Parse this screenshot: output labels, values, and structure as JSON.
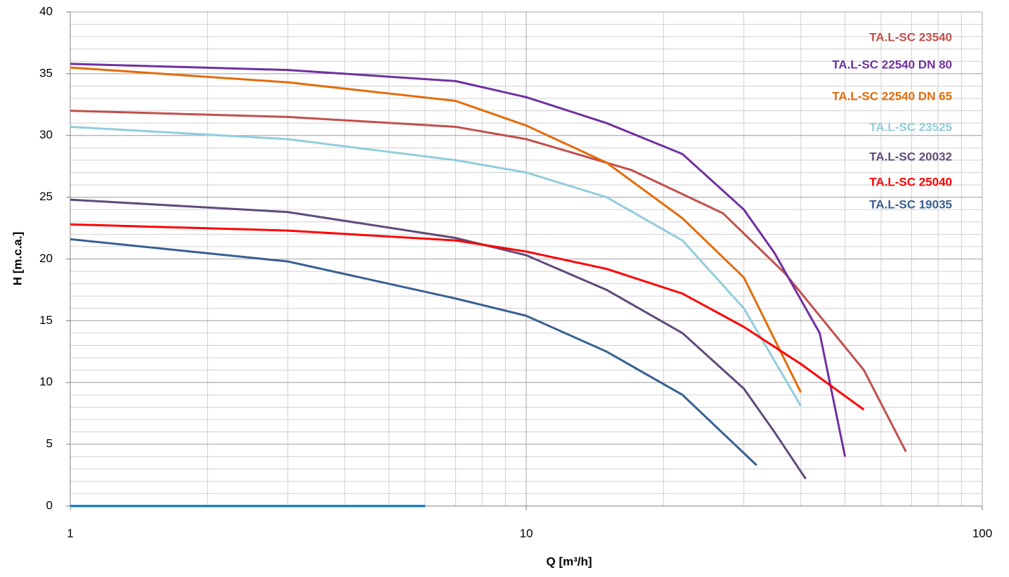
{
  "chart_data": {
    "type": "line",
    "x_label": "Q [m³/h]",
    "y_label": "H [m.c.a.]",
    "xlim": [
      1,
      100
    ],
    "xticks": [
      1,
      10,
      100
    ],
    "x_log": true,
    "ylim": [
      0,
      40
    ],
    "yticks": [
      0,
      5,
      10,
      15,
      20,
      25,
      30,
      35,
      40
    ],
    "grid": true,
    "series": [
      {
        "name": "TA.L-SC 23540",
        "color": "#c0504d",
        "x": [
          1,
          3,
          7,
          10,
          17,
          27,
          37,
          55,
          68
        ],
        "values": [
          32,
          31.5,
          30.7,
          29.7,
          27.2,
          23.7,
          18.8,
          11,
          4.4
        ]
      },
      {
        "name": "TA.L-SC 22540 DN 80",
        "color": "#7030a0",
        "x": [
          1,
          3,
          7,
          10,
          15,
          22,
          30,
          35,
          44,
          50
        ],
        "values": [
          35.8,
          35.3,
          34.4,
          33.1,
          31,
          28.5,
          24,
          20.5,
          14,
          4
        ]
      },
      {
        "name": "TA.L-SC 22540 DN 65",
        "color": "#e36c09",
        "x": [
          1,
          3,
          7,
          10,
          15,
          22,
          30,
          40
        ],
        "values": [
          35.5,
          34.3,
          32.8,
          30.8,
          27.8,
          23.3,
          18.5,
          9.2
        ]
      },
      {
        "name": "TA.L-SC 23525",
        "color": "#92cddc",
        "x": [
          1,
          3,
          7,
          10,
          15,
          22,
          30,
          40
        ],
        "values": [
          30.7,
          29.7,
          28,
          27,
          25,
          21.5,
          16,
          8.1
        ]
      },
      {
        "name": "TA.L-SC 20032",
        "color": "#604a7b",
        "x": [
          1,
          3,
          7,
          10,
          15,
          22,
          30,
          35,
          41
        ],
        "values": [
          24.8,
          23.8,
          21.7,
          20.3,
          17.5,
          14,
          9.5,
          6,
          2.2
        ]
      },
      {
        "name": "TA.L-SC 25040",
        "color": "#ff0000",
        "x": [
          1,
          3,
          7,
          10,
          15,
          22,
          30,
          40,
          55
        ],
        "values": [
          22.8,
          22.3,
          21.5,
          20.6,
          19.2,
          17.2,
          14.5,
          11.5,
          7.8
        ]
      },
      {
        "name": "TA.L-SC 19035",
        "color": "#376092",
        "x": [
          1,
          3,
          7,
          10,
          15,
          22,
          32
        ],
        "values": [
          21.6,
          19.8,
          16.8,
          15.4,
          12.5,
          9,
          3.3
        ]
      },
      {
        "color": "#0070c0",
        "x": [
          1,
          6
        ],
        "values": [
          0,
          0
        ]
      }
    ]
  }
}
